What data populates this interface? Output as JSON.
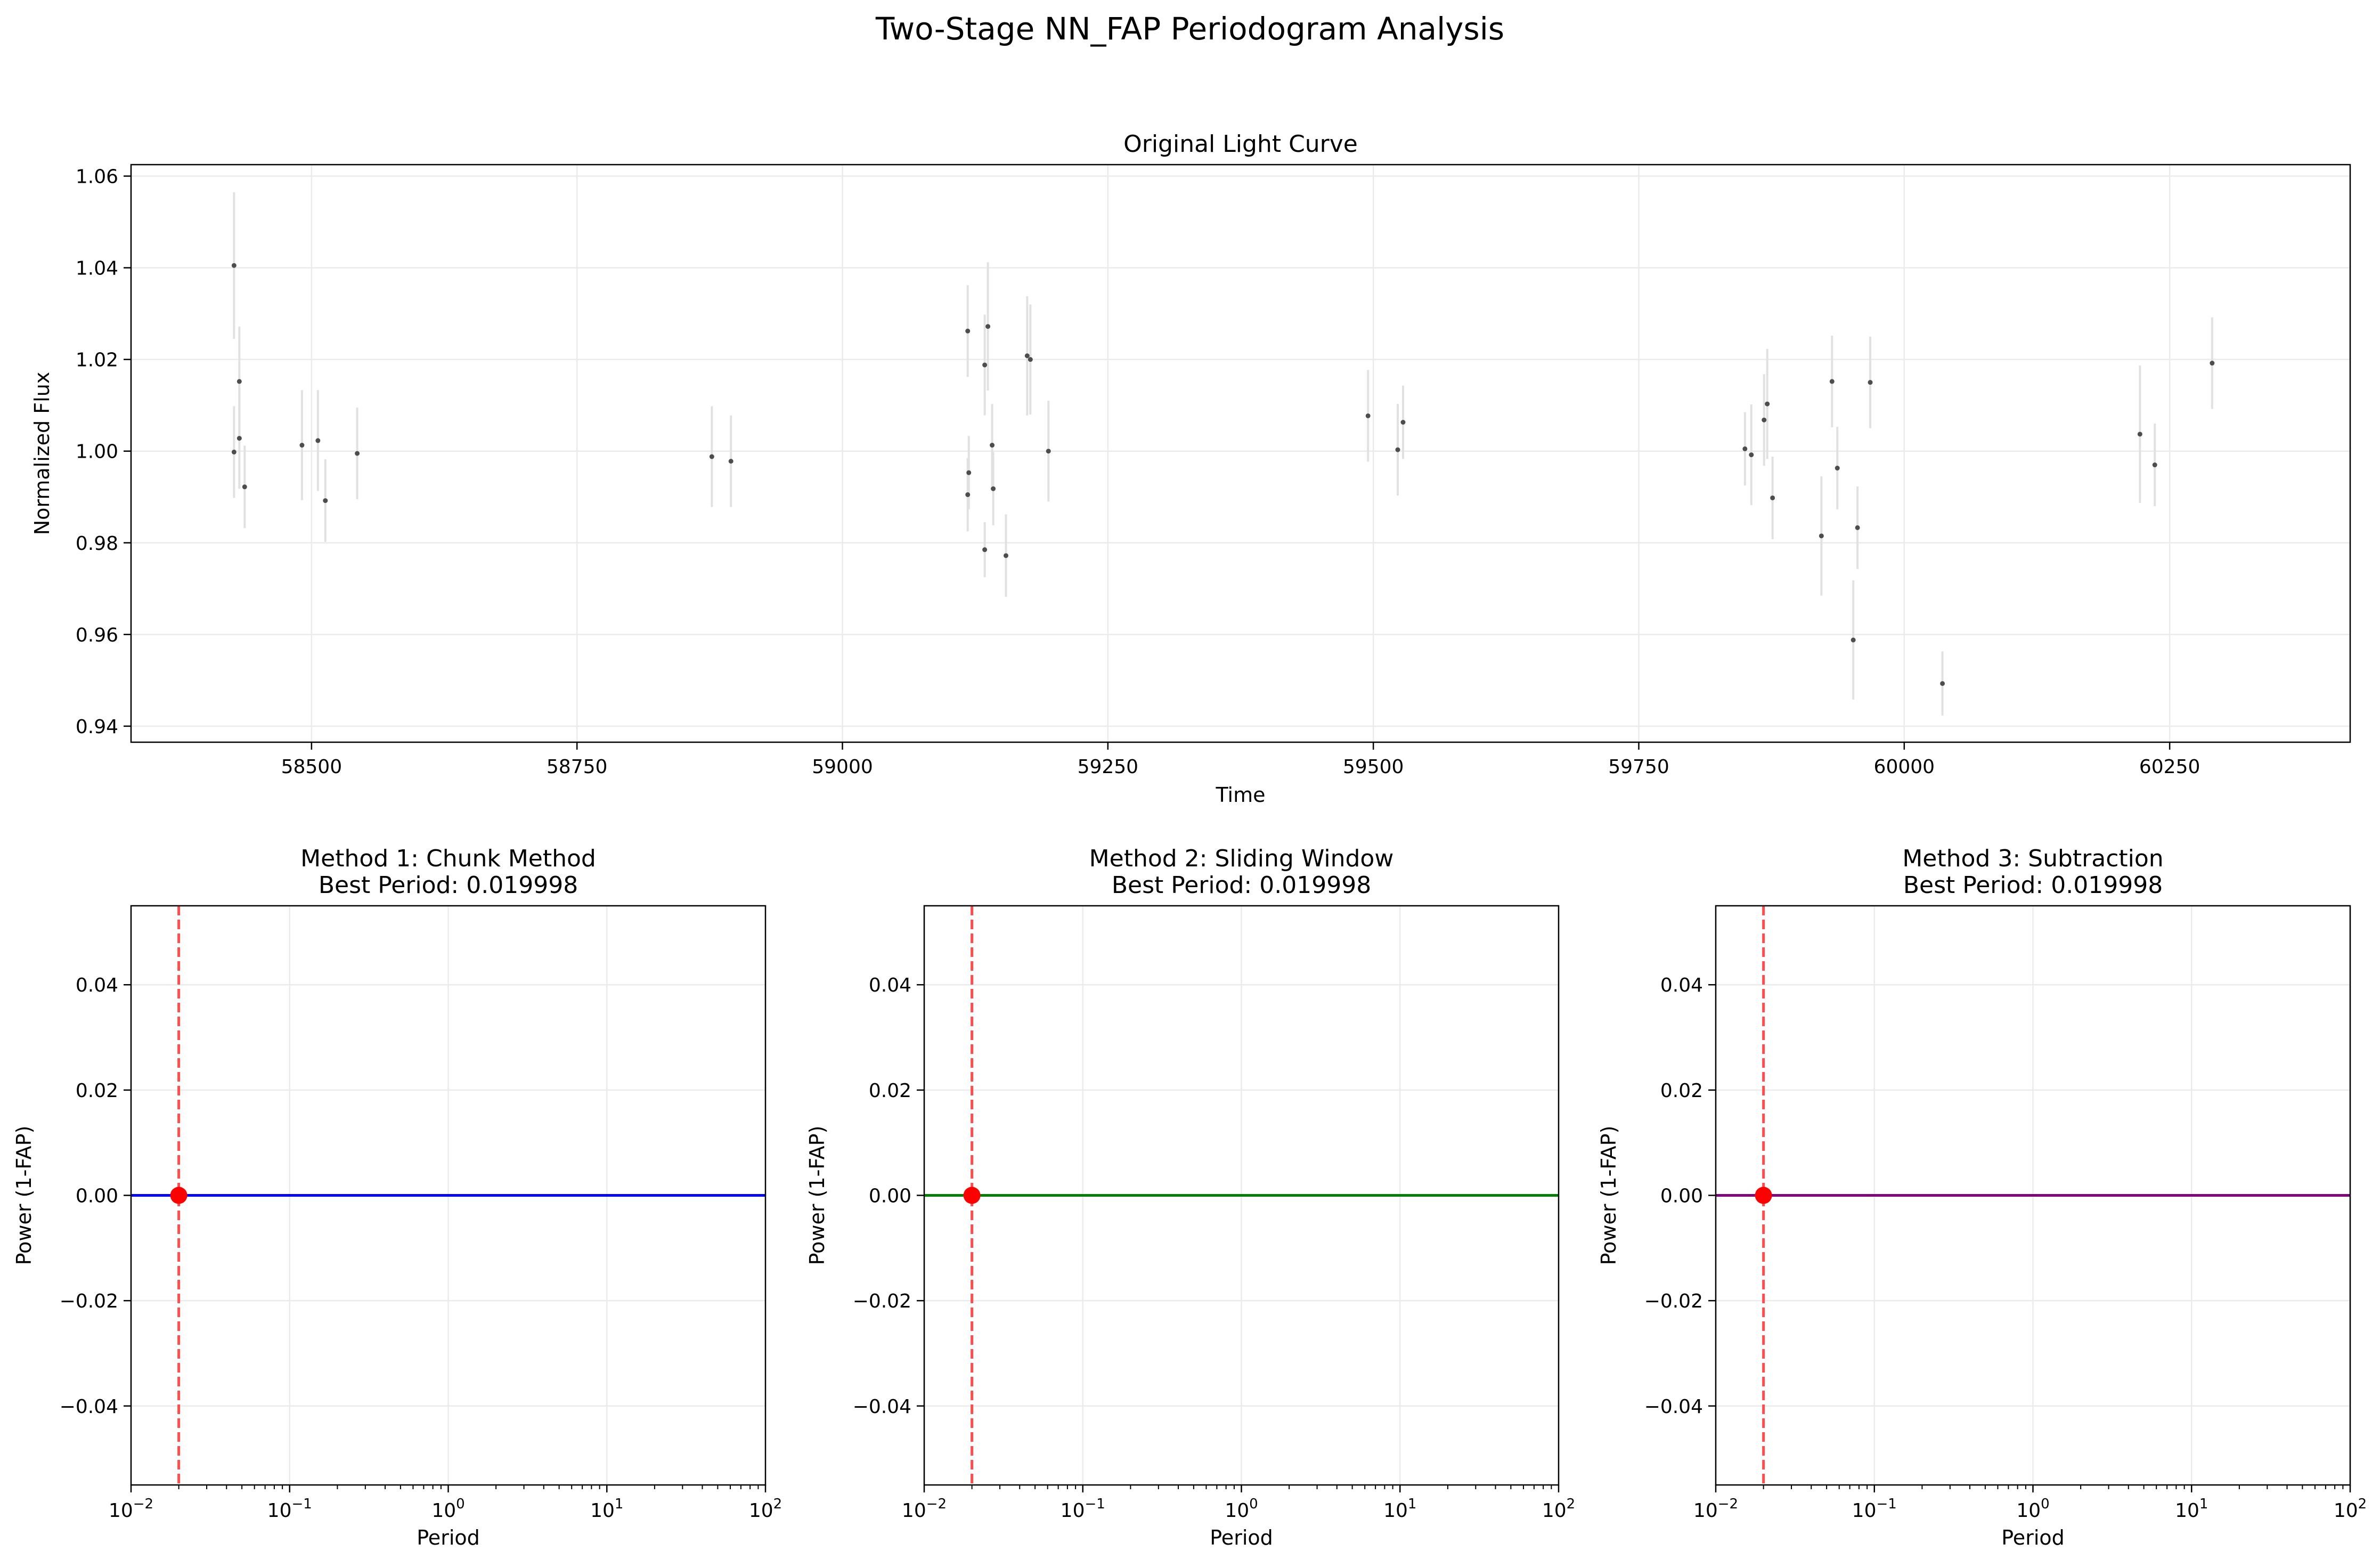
{
  "figure": {
    "title": "Two-Stage NN_FAP Periodogram Analysis"
  },
  "chart_data": [
    {
      "type": "scatter",
      "title": "Original Light Curve",
      "xlabel": "Time",
      "ylabel": "Normalized Flux",
      "xlim": [
        58330,
        60420
      ],
      "ylim": [
        0.9365,
        1.0625
      ],
      "x_ticks": [
        58500,
        58750,
        59000,
        59250,
        59500,
        59750,
        60000,
        60250
      ],
      "x_tick_labels": [
        "58500",
        "58750",
        "59000",
        "59250",
        "59500",
        "59750",
        "60000",
        "60250"
      ],
      "y_ticks": [
        0.94,
        0.96,
        0.98,
        1.0,
        1.02,
        1.04,
        1.06
      ],
      "y_tick_labels": [
        "0.94",
        "0.96",
        "0.98",
        "1.00",
        "1.02",
        "1.04",
        "1.06"
      ],
      "grid": true,
      "colors": {
        "point": "#4d4d4d",
        "errorbar": "#e1e1e1"
      },
      "points": [
        {
          "x": 58427,
          "y": 1.0405,
          "err": 0.016
        },
        {
          "x": 58427,
          "y": 0.9998,
          "err": 0.01
        },
        {
          "x": 58432,
          "y": 1.0152,
          "err": 0.012
        },
        {
          "x": 58432,
          "y": 1.0028,
          "err": 0.011
        },
        {
          "x": 58437,
          "y": 0.9922,
          "err": 0.009
        },
        {
          "x": 58491,
          "y": 1.0013,
          "err": 0.012
        },
        {
          "x": 58506,
          "y": 1.0023,
          "err": 0.011
        },
        {
          "x": 58513,
          "y": 0.9892,
          "err": 0.009
        },
        {
          "x": 58543,
          "y": 0.9995,
          "err": 0.01
        },
        {
          "x": 58877,
          "y": 0.9988,
          "err": 0.011
        },
        {
          "x": 58895,
          "y": 0.9978,
          "err": 0.01
        },
        {
          "x": 59118,
          "y": 1.0262,
          "err": 0.01
        },
        {
          "x": 59118,
          "y": 0.9905,
          "err": 0.008
        },
        {
          "x": 59119,
          "y": 0.9953,
          "err": 0.008
        },
        {
          "x": 59134,
          "y": 1.0188,
          "err": 0.011
        },
        {
          "x": 59134,
          "y": 0.9785,
          "err": 0.006
        },
        {
          "x": 59137,
          "y": 1.0272,
          "err": 0.014
        },
        {
          "x": 59141,
          "y": 1.0013,
          "err": 0.009
        },
        {
          "x": 59142,
          "y": 0.9918,
          "err": 0.008
        },
        {
          "x": 59154,
          "y": 0.9772,
          "err": 0.009
        },
        {
          "x": 59174,
          "y": 1.0208,
          "err": 0.013
        },
        {
          "x": 59177,
          "y": 1.02,
          "err": 0.012
        },
        {
          "x": 59194,
          "y": 1.0,
          "err": 0.011
        },
        {
          "x": 59495,
          "y": 1.0077,
          "err": 0.01
        },
        {
          "x": 59523,
          "y": 1.0003,
          "err": 0.01
        },
        {
          "x": 59528,
          "y": 1.0063,
          "err": 0.008
        },
        {
          "x": 59850,
          "y": 1.0005,
          "err": 0.008
        },
        {
          "x": 59856,
          "y": 0.9992,
          "err": 0.011
        },
        {
          "x": 59868,
          "y": 1.0068,
          "err": 0.01
        },
        {
          "x": 59871,
          "y": 1.0103,
          "err": 0.012
        },
        {
          "x": 59876,
          "y": 0.9898,
          "err": 0.009
        },
        {
          "x": 59922,
          "y": 0.9815,
          "err": 0.013
        },
        {
          "x": 59932,
          "y": 1.0152,
          "err": 0.01
        },
        {
          "x": 59937,
          "y": 0.9963,
          "err": 0.009
        },
        {
          "x": 59952,
          "y": 0.9588,
          "err": 0.013
        },
        {
          "x": 59956,
          "y": 0.9833,
          "err": 0.009
        },
        {
          "x": 59968,
          "y": 1.015,
          "err": 0.01
        },
        {
          "x": 60036,
          "y": 0.9493,
          "err": 0.007
        },
        {
          "x": 60222,
          "y": 1.0037,
          "err": 0.015
        },
        {
          "x": 60236,
          "y": 0.997,
          "err": 0.009
        },
        {
          "x": 60290,
          "y": 1.0192,
          "err": 0.01
        }
      ]
    },
    {
      "type": "line",
      "title": "Method 1: Chunk Method",
      "subtitle": "Best Period: 0.019998",
      "xlabel": "Period",
      "ylabel": "Power (1-FAP)",
      "xscale": "log",
      "xlim": [
        0.01,
        100
      ],
      "ylim": [
        -0.055,
        0.055
      ],
      "y_ticks": [
        -0.04,
        -0.02,
        0.0,
        0.02,
        0.04
      ],
      "y_tick_labels": [
        "−0.04",
        "−0.02",
        "0.00",
        "0.02",
        "0.04"
      ],
      "x_tick_base": "10",
      "x_tick_exponents": [
        "−2",
        "−1",
        "0",
        "1",
        "2"
      ],
      "series": [
        {
          "x": [
            0.01,
            100
          ],
          "y": [
            0.0,
            0.0
          ],
          "color": "#0000ff"
        }
      ],
      "best_period": 0.019998,
      "best_power": 0.0,
      "colors": {
        "best_marker": "#ff0000",
        "best_line": "#ff4d4d"
      },
      "grid": true
    },
    {
      "type": "line",
      "title": "Method 2: Sliding Window",
      "subtitle": "Best Period: 0.019998",
      "xlabel": "Period",
      "ylabel": "Power (1-FAP)",
      "xscale": "log",
      "xlim": [
        0.01,
        100
      ],
      "ylim": [
        -0.055,
        0.055
      ],
      "y_ticks": [
        -0.04,
        -0.02,
        0.0,
        0.02,
        0.04
      ],
      "y_tick_labels": [
        "−0.04",
        "−0.02",
        "0.00",
        "0.02",
        "0.04"
      ],
      "x_tick_base": "10",
      "x_tick_exponents": [
        "−2",
        "−1",
        "0",
        "1",
        "2"
      ],
      "series": [
        {
          "x": [
            0.01,
            100
          ],
          "y": [
            0.0,
            0.0
          ],
          "color": "#008000"
        }
      ],
      "best_period": 0.019998,
      "best_power": 0.0,
      "colors": {
        "best_marker": "#ff0000",
        "best_line": "#ff4d4d"
      },
      "grid": true
    },
    {
      "type": "line",
      "title": "Method 3: Subtraction",
      "subtitle": "Best Period: 0.019998",
      "xlabel": "Period",
      "ylabel": "Power (1-FAP)",
      "xscale": "log",
      "xlim": [
        0.01,
        100
      ],
      "ylim": [
        -0.055,
        0.055
      ],
      "y_ticks": [
        -0.04,
        -0.02,
        0.0,
        0.02,
        0.04
      ],
      "y_tick_labels": [
        "−0.04",
        "−0.02",
        "0.00",
        "0.02",
        "0.04"
      ],
      "x_tick_base": "10",
      "x_tick_exponents": [
        "−2",
        "−1",
        "0",
        "1",
        "2"
      ],
      "series": [
        {
          "x": [
            0.01,
            100
          ],
          "y": [
            0.0,
            0.0
          ],
          "color": "#800080"
        }
      ],
      "best_period": 0.019998,
      "best_power": 0.0,
      "colors": {
        "best_marker": "#ff0000",
        "best_line": "#ff4d4d"
      },
      "grid": true
    }
  ]
}
